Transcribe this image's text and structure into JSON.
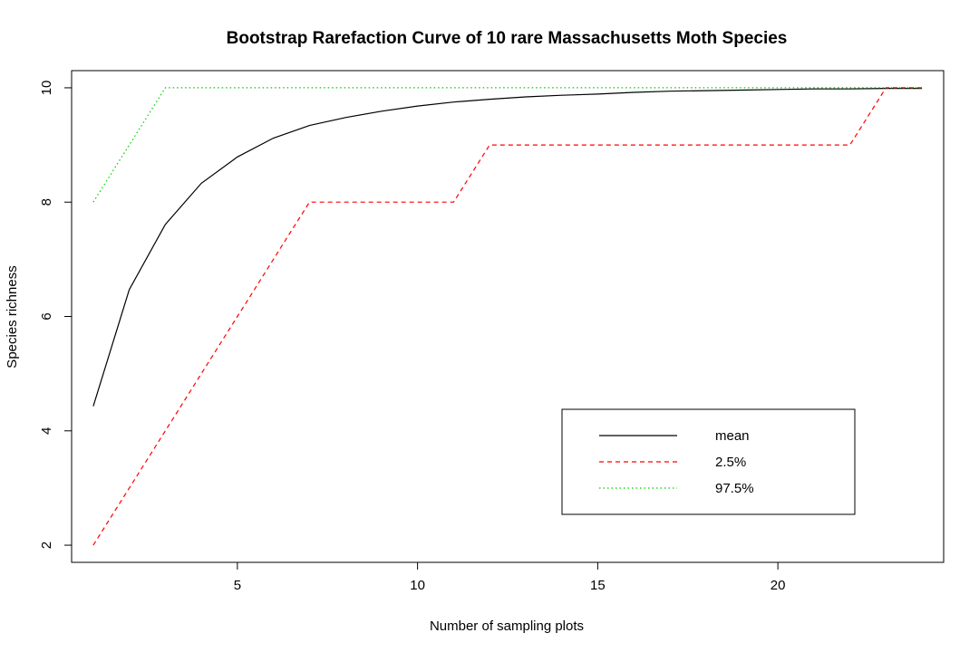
{
  "chart_data": {
    "type": "line",
    "title": "Bootstrap Rarefaction Curve of 10 rare Massachusetts Moth Species",
    "xlabel": "Number of sampling plots",
    "ylabel": "Species richness",
    "xlim": [
      0.4,
      24.6
    ],
    "ylim": [
      1.7,
      10.3
    ],
    "xticks": [
      5,
      10,
      15,
      20
    ],
    "yticks": [
      2,
      4,
      6,
      8,
      10
    ],
    "grid": false,
    "legend_position": "bottom-right",
    "series": [
      {
        "name": "mean",
        "color": "#000000",
        "dash": "solid",
        "x": [
          1,
          2,
          3,
          4,
          5,
          6,
          7,
          8,
          9,
          10,
          11,
          12,
          13,
          14,
          15,
          16,
          17,
          18,
          19,
          20,
          21,
          22,
          23,
          24
        ],
        "values": [
          4.43,
          6.47,
          7.61,
          8.33,
          8.79,
          9.12,
          9.34,
          9.48,
          9.59,
          9.68,
          9.75,
          9.8,
          9.84,
          9.87,
          9.89,
          9.92,
          9.94,
          9.95,
          9.96,
          9.97,
          9.98,
          9.98,
          9.99,
          9.99
        ]
      },
      {
        "name": "2.5%",
        "color": "#ff0000",
        "dash": "dashed",
        "x": [
          1,
          2,
          3,
          4,
          5,
          6,
          7,
          8,
          9,
          10,
          11,
          12,
          13,
          14,
          15,
          16,
          17,
          18,
          19,
          20,
          21,
          22,
          23,
          24
        ],
        "values": [
          2,
          3,
          4,
          5,
          6,
          7,
          8,
          8,
          8,
          8,
          8,
          9,
          9,
          9,
          9,
          9,
          9,
          9,
          9,
          9,
          9,
          9,
          10,
          10
        ]
      },
      {
        "name": "97.5%",
        "color": "#00cd00",
        "dash": "dotted",
        "x": [
          1,
          2,
          3,
          4,
          5,
          6,
          7,
          8,
          9,
          10,
          11,
          12,
          13,
          14,
          15,
          16,
          17,
          18,
          19,
          20,
          21,
          22,
          23,
          24
        ],
        "values": [
          8,
          9,
          10,
          10,
          10,
          10,
          10,
          10,
          10,
          10,
          10,
          10,
          10,
          10,
          10,
          10,
          10,
          10,
          10,
          10,
          10,
          10,
          10,
          10
        ]
      }
    ]
  }
}
